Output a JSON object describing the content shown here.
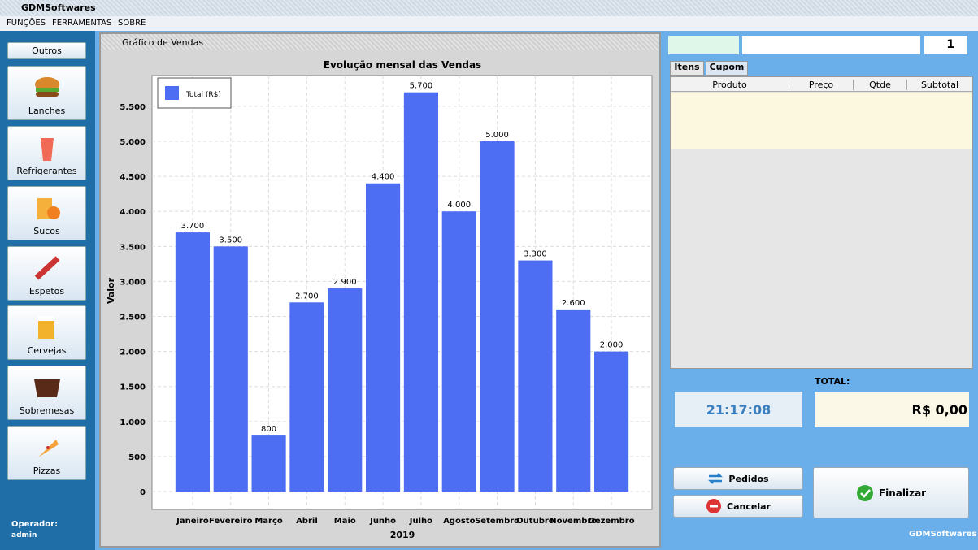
{
  "window": {
    "title": "GDMSoftwares",
    "menu": [
      "FUNÇÕES",
      "FERRAMENTAS",
      "SOBRE"
    ]
  },
  "sidebar": {
    "buttons": [
      "Outros",
      "Lanches",
      "Refrigerantes",
      "Sucos",
      "Espetos",
      "Cervejas",
      "Sobremesas",
      "Pizzas"
    ],
    "operator_label": "Operador:",
    "operator": "admin"
  },
  "frame": {
    "title": "Gráfico de Vendas"
  },
  "chart_data": {
    "type": "bar",
    "title": "Evolução mensal das Vendas",
    "x_label": "2019",
    "y_label": "Valor",
    "categories": [
      "Janeiro",
      "Fevereiro",
      "Março",
      "Abril",
      "Maio",
      "Junho",
      "Julho",
      "Agosto",
      "Setembro",
      "Outubro",
      "Novembro",
      "Dezembro"
    ],
    "series": [
      {
        "name": "Total (R$)",
        "color": "#4d6ef2",
        "values": [
          3700,
          3500,
          800,
          2700,
          2900,
          4400,
          5700,
          4000,
          5000,
          3300,
          2600,
          2000
        ],
        "value_labels": [
          "3.700",
          "3.500",
          "800",
          "2.700",
          "2.900",
          "4.400",
          "5.700",
          "4.000",
          "5.000",
          "3.300",
          "2.600",
          "2.000"
        ]
      }
    ],
    "ylim": [
      -255,
      5940
    ],
    "yticks": [
      0,
      500,
      {
        "value": 1000,
        "label": "1.000"
      },
      {
        "value": 1500,
        "label": "1.500"
      },
      {
        "value": 2000,
        "label": "2.000"
      },
      {
        "value": 2500,
        "label": "2.500"
      },
      {
        "value": 3000,
        "label": "3.000"
      },
      {
        "value": 3500,
        "label": "3.500"
      },
      {
        "value": 4000,
        "label": "4.000"
      },
      {
        "value": 4500,
        "label": "4.500"
      },
      {
        "value": 5000,
        "label": "5.000"
      },
      {
        "value": 5500,
        "label": "5.500"
      }
    ],
    "grid": true,
    "legend": "top-left"
  },
  "order": {
    "quantity": "1",
    "tabs": [
      "Itens",
      "Cupom"
    ],
    "columns": [
      "Produto",
      "Preço",
      "Qtde",
      "Subtotal"
    ],
    "total_label": "TOTAL:",
    "clock": "21:17:08",
    "total": "R$ 0,00",
    "buttons": [
      "Pedidos",
      "Cancelar",
      "Finalizar"
    ],
    "brand": "GDMSoftwares"
  }
}
